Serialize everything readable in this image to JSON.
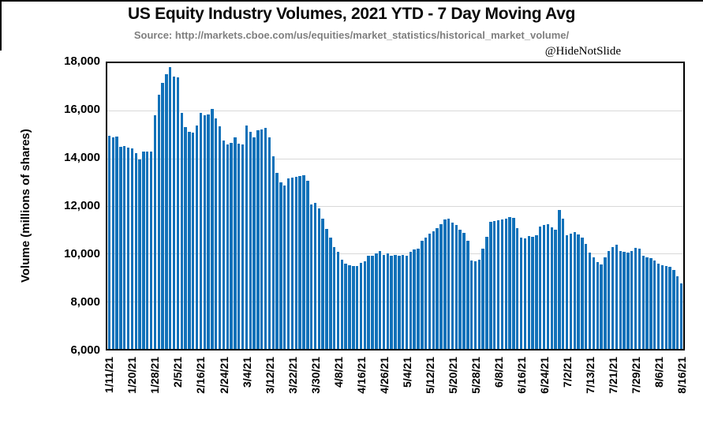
{
  "page": {
    "watermark": "@HideNotSlide"
  },
  "chart_data": {
    "type": "bar",
    "title": "US Equity Industry Volumes, 2021 YTD - 7 Day Moving Avg",
    "subtitle": "Source: http://markets.cboe.com/us/equities/market_statistics/historical_market_volume/",
    "ylabel": "Volume (millions of shares)",
    "xlabel": "",
    "ylim": [
      6000,
      18000
    ],
    "ytick_step": 2000,
    "ytick_labels": [
      "18,000",
      "16,000",
      "14,000",
      "12,000",
      "10,000",
      "8,000",
      "6,000"
    ],
    "grid": true,
    "legend": "none",
    "bar_color": "#1171b9",
    "grid_color": "#d9d9d9",
    "xtick_every": 6,
    "xtick_labels": [
      "1/11/21",
      "1/20/21",
      "1/28/21",
      "2/5/21",
      "2/16/21",
      "2/24/21",
      "3/4/21",
      "3/12/21",
      "3/22/21",
      "3/30/21",
      "4/8/21",
      "4/16/21",
      "4/26/21",
      "5/4/21",
      "5/12/21",
      "5/20/21",
      "5/28/21",
      "6/8/21",
      "6/16/21",
      "6/24/21",
      "7/2/21",
      "7/13/21",
      "7/21/21",
      "7/29/21",
      "8/6/21",
      "8/16/21"
    ],
    "values": [
      14950,
      14900,
      14920,
      14500,
      14520,
      14450,
      14430,
      14230,
      13950,
      14280,
      14300,
      14280,
      15820,
      16680,
      17170,
      17540,
      17830,
      17450,
      17400,
      15910,
      15300,
      15100,
      15080,
      15380,
      15910,
      15800,
      15850,
      16070,
      15690,
      15360,
      14760,
      14600,
      14650,
      14900,
      14630,
      14580,
      15390,
      15120,
      14900,
      15170,
      15230,
      15280,
      14900,
      14090,
      13380,
      13000,
      12860,
      13160,
      13180,
      13220,
      13270,
      13290,
      13050,
      12080,
      12130,
      11910,
      11480,
      11050,
      10660,
      10280,
      10070,
      9740,
      9580,
      9520,
      9490,
      9470,
      9630,
      9690,
      9900,
      9925,
      10010,
      10100,
      9960,
      10010,
      9925,
      9960,
      9900,
      9960,
      9900,
      10065,
      10175,
      10210,
      10555,
      10690,
      10830,
      10935,
      11075,
      11230,
      11425,
      11460,
      11320,
      11210,
      11015,
      10880,
      10530,
      9705,
      9685,
      9740,
      10210,
      10720,
      11340,
      11370,
      11400,
      11440,
      11480,
      11530,
      11510,
      11060,
      10680,
      10640,
      10740,
      10700,
      10770,
      11140,
      11190,
      11250,
      11090,
      11000,
      11830,
      11470,
      10760,
      10850,
      10920,
      10820,
      10680,
      10400,
      10050,
      9850,
      9660,
      9560,
      9850,
      10120,
      10280,
      10360,
      10100,
      10070,
      10040,
      10120,
      10230,
      10210,
      9900,
      9840,
      9800,
      9700,
      9580,
      9510,
      9480,
      9450,
      9300,
      9050,
      8760
    ]
  }
}
